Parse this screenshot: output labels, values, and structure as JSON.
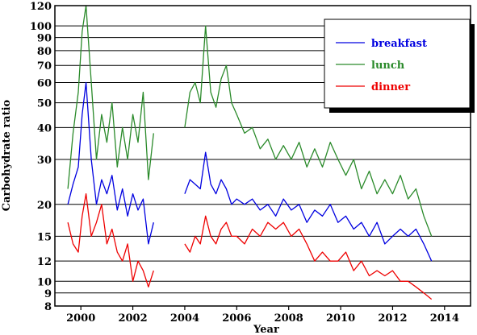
{
  "chart_data": {
    "type": "line",
    "title": "",
    "xlabel": "Year",
    "ylabel": "Carbohydrate ratio",
    "xlim": [
      1999.0,
      2015.0
    ],
    "ylim": [
      8,
      120
    ],
    "y_scale": "log",
    "grid": "horizontal",
    "legend_position": "top-right",
    "x_ticks": [
      2000,
      2002,
      2004,
      2006,
      2008,
      2010,
      2012,
      2014
    ],
    "x_tick_labels": [
      "2000",
      "2002",
      "2004",
      "2006",
      "2008",
      "2010",
      "2012",
      "2014"
    ],
    "y_ticks": [
      8,
      9,
      10,
      12,
      15,
      20,
      30,
      40,
      50,
      60,
      70,
      80,
      90,
      100,
      120
    ],
    "y_tick_labels": [
      "8",
      "9",
      "10",
      "12",
      "15",
      "20",
      "30",
      "40",
      "50",
      "60",
      "70",
      "80",
      "90",
      "100",
      "120"
    ],
    "series": [
      {
        "name": "lunch",
        "color": "#2a8a2a",
        "x": [
          1999.5,
          1999.7,
          1999.9,
          2000.05,
          2000.2,
          2000.4,
          2000.6,
          2000.8,
          2001.0,
          2001.2,
          2001.4,
          2001.6,
          2001.8,
          2002.0,
          2002.2,
          2002.4,
          2002.6,
          2002.8,
          null,
          2004.0,
          2004.2,
          2004.4,
          2004.6,
          2004.8,
          2005.0,
          2005.2,
          2005.4,
          2005.6,
          2005.8,
          2006.0,
          2006.3,
          2006.6,
          2006.9,
          2007.2,
          2007.5,
          2007.8,
          2008.1,
          2008.4,
          2008.7,
          2009.0,
          2009.3,
          2009.6,
          2009.9,
          2010.2,
          2010.5,
          2010.8,
          2011.1,
          2011.4,
          2011.7,
          2012.0,
          2012.3,
          2012.6,
          2012.9,
          2013.2,
          2013.5
        ],
        "y": [
          23,
          38,
          55,
          95,
          120,
          60,
          30,
          45,
          35,
          50,
          28,
          40,
          30,
          45,
          35,
          55,
          25,
          38,
          null,
          40,
          55,
          60,
          50,
          100,
          55,
          48,
          62,
          70,
          50,
          45,
          38,
          40,
          33,
          36,
          30,
          34,
          30,
          35,
          28,
          33,
          28,
          35,
          30,
          26,
          30,
          23,
          27,
          22,
          25,
          22,
          26,
          21,
          23,
          18,
          15
        ]
      },
      {
        "name": "breakfast",
        "color": "#0000e0",
        "x": [
          1999.5,
          1999.7,
          1999.9,
          2000.05,
          2000.2,
          2000.4,
          2000.6,
          2000.8,
          2001.0,
          2001.2,
          2001.4,
          2001.6,
          2001.8,
          2002.0,
          2002.2,
          2002.4,
          2002.6,
          2002.8,
          null,
          2004.0,
          2004.2,
          2004.4,
          2004.6,
          2004.8,
          2005.0,
          2005.2,
          2005.4,
          2005.6,
          2005.8,
          2006.0,
          2006.3,
          2006.6,
          2006.9,
          2007.2,
          2007.5,
          2007.8,
          2008.1,
          2008.4,
          2008.7,
          2009.0,
          2009.3,
          2009.6,
          2009.9,
          2010.2,
          2010.5,
          2010.8,
          2011.1,
          2011.4,
          2011.7,
          2012.0,
          2012.3,
          2012.6,
          2012.9,
          2013.2,
          2013.5
        ],
        "y": [
          20,
          24,
          28,
          45,
          60,
          30,
          20,
          25,
          22,
          26,
          19,
          23,
          18,
          22,
          19,
          21,
          14,
          17,
          null,
          22,
          25,
          24,
          23,
          32,
          24,
          22,
          25,
          23,
          20,
          21,
          20,
          21,
          19,
          20,
          18,
          21,
          19,
          20,
          17,
          19,
          18,
          20,
          17,
          18,
          16,
          17,
          15,
          17,
          14,
          15,
          16,
          15,
          16,
          14,
          12
        ]
      },
      {
        "name": "dinner",
        "color": "#ee0000",
        "x": [
          1999.5,
          1999.7,
          1999.9,
          2000.05,
          2000.2,
          2000.4,
          2000.6,
          2000.8,
          2001.0,
          2001.2,
          2001.4,
          2001.6,
          2001.8,
          2002.0,
          2002.2,
          2002.4,
          2002.6,
          2002.8,
          null,
          2004.0,
          2004.2,
          2004.4,
          2004.6,
          2004.8,
          2005.0,
          2005.2,
          2005.4,
          2005.6,
          2005.8,
          2006.0,
          2006.3,
          2006.6,
          2006.9,
          2007.2,
          2007.5,
          2007.8,
          2008.1,
          2008.4,
          2008.7,
          2009.0,
          2009.3,
          2009.6,
          2009.9,
          2010.2,
          2010.5,
          2010.8,
          2011.1,
          2011.4,
          2011.7,
          2012.0,
          2012.3,
          2012.6,
          2012.9,
          2013.2,
          2013.5
        ],
        "y": [
          17,
          14,
          13,
          18,
          22,
          15,
          17,
          20,
          14,
          16,
          13,
          12,
          14,
          10,
          12,
          11,
          9.5,
          11,
          null,
          14,
          13,
          15,
          14,
          18,
          15,
          14,
          16,
          17,
          15,
          15,
          14,
          16,
          15,
          17,
          16,
          17,
          15,
          16,
          14,
          12,
          13,
          12,
          12,
          13,
          11,
          12,
          10.5,
          11,
          10.5,
          11,
          10,
          10,
          9.5,
          9,
          8.5
        ]
      }
    ]
  }
}
